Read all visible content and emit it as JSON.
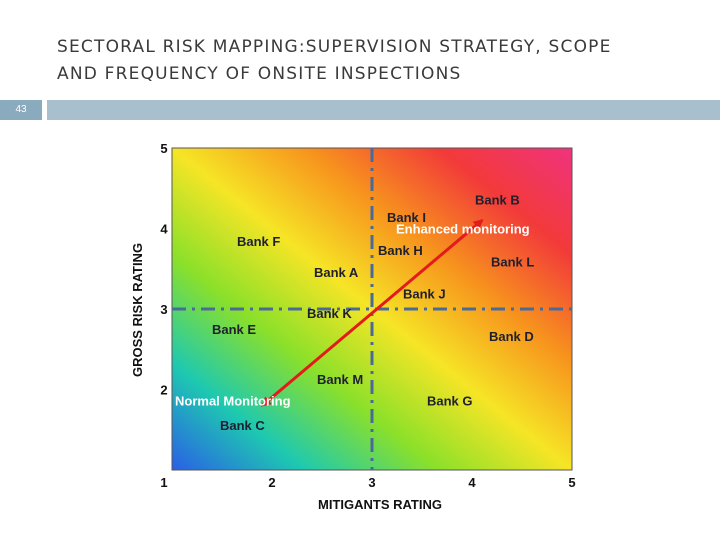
{
  "slide": {
    "title_line1": "SECTORAL RISK MAPPING:SUPERVISION STRATEGY, SCOPE",
    "title_line2": "AND FREQUENCY OF ONSITE INSPECTIONS",
    "page_number": "43"
  },
  "colors": {
    "accent_bar": "#a8bfcd",
    "page_number_box": "#8aaabe",
    "gradient": [
      "#2a5fe6",
      "#1ec9b0",
      "#8be02a",
      "#f6e526",
      "#f7941d",
      "#f23a3a",
      "#f0337e"
    ],
    "arrow": "#e31b1b",
    "divider": "#4a6a9a"
  },
  "chart_data": {
    "type": "scatter",
    "xlabel": "MITIGANTS RATING",
    "ylabel": "GROSS RISK RATING",
    "xlim": [
      1,
      5
    ],
    "ylim": [
      1,
      5
    ],
    "x_ticks": [
      "1",
      "2",
      "3",
      "4",
      "5"
    ],
    "y_ticks": [
      "2",
      "3",
      "4",
      "5"
    ],
    "origin_label": "1",
    "dividers": {
      "x": 3,
      "y": 3
    },
    "arrow": {
      "from": [
        1.95,
        1.85
      ],
      "to": [
        4.1,
        4.1
      ]
    },
    "zones": [
      {
        "label": "Enhanced monitoring",
        "x": 3.24,
        "y": 3.94
      },
      {
        "label": "Normal Monitoring",
        "x": 1.03,
        "y": 1.8
      }
    ],
    "points": [
      {
        "label": "Bank B",
        "x": 4.03,
        "y": 4.3
      },
      {
        "label": "Bank I",
        "x": 3.15,
        "y": 4.08
      },
      {
        "label": "Bank H",
        "x": 3.06,
        "y": 3.67
      },
      {
        "label": "Bank L",
        "x": 4.19,
        "y": 3.53
      },
      {
        "label": "Bank F",
        "x": 1.65,
        "y": 3.78
      },
      {
        "label": "Bank A",
        "x": 2.42,
        "y": 3.4
      },
      {
        "label": "Bank J",
        "x": 3.31,
        "y": 3.13
      },
      {
        "label": "Bank K",
        "x": 2.35,
        "y": 2.89
      },
      {
        "label": "Bank E",
        "x": 1.4,
        "y": 2.69
      },
      {
        "label": "Bank D",
        "x": 4.17,
        "y": 2.6
      },
      {
        "label": "Bank M",
        "x": 2.45,
        "y": 2.07
      },
      {
        "label": "Bank G",
        "x": 3.55,
        "y": 1.8
      },
      {
        "label": "Bank C",
        "x": 1.48,
        "y": 1.5
      }
    ]
  }
}
